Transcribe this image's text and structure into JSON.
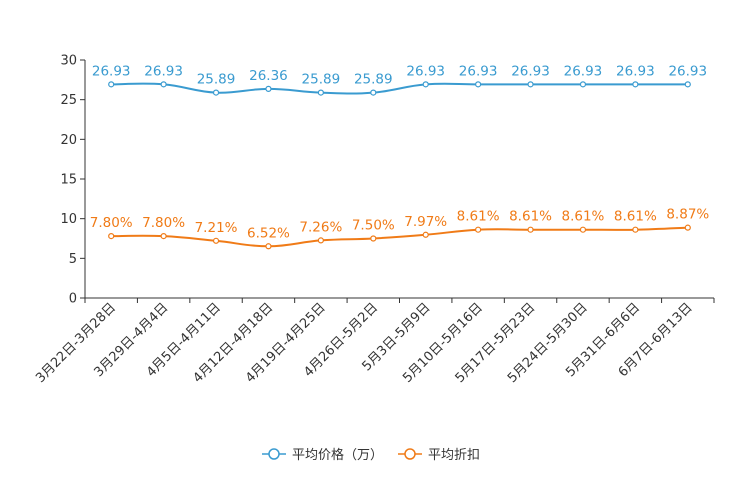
{
  "chart_data": {
    "type": "line",
    "title": "",
    "xlabel": "",
    "ylabel": "",
    "ylim": [
      0,
      30
    ],
    "yticks": [
      0,
      5,
      10,
      15,
      20,
      25,
      30
    ],
    "grid": false,
    "legend_position": "bottom-center",
    "categories": [
      "3月22日-3月28日",
      "3月29日-4月4日",
      "4月5日-4月11日",
      "4月12日-4月18日",
      "4月19日-4月25日",
      "4月26日-5月2日",
      "5月3日-5月9日",
      "5月10日-5月16日",
      "5月17日-5月23日",
      "5月24日-5月30日",
      "5月31日-6月6日",
      "6月7日-6月13日"
    ],
    "series": [
      {
        "name": "平均价格（万）",
        "color": "#3a9bd0",
        "values": [
          26.93,
          26.93,
          25.89,
          26.36,
          25.89,
          25.89,
          26.93,
          26.93,
          26.93,
          26.93,
          26.93,
          26.93
        ],
        "labels": [
          "26.93",
          "26.93",
          "25.89",
          "26.36",
          "25.89",
          "25.89",
          "26.93",
          "26.93",
          "26.93",
          "26.93",
          "26.93",
          "26.93"
        ]
      },
      {
        "name": "平均折扣",
        "color": "#f07b17",
        "values": [
          7.8,
          7.8,
          7.21,
          6.52,
          7.26,
          7.5,
          7.97,
          8.61,
          8.61,
          8.61,
          8.61,
          8.87
        ],
        "labels": [
          "7.80%",
          "7.80%",
          "7.21%",
          "6.52%",
          "7.26%",
          "7.50%",
          "7.97%",
          "8.61%",
          "8.61%",
          "8.61%",
          "8.61%",
          "8.87%"
        ]
      }
    ]
  },
  "legend": {
    "items": [
      {
        "label": "平均价格（万）",
        "color": "#3a9bd0"
      },
      {
        "label": "平均折扣",
        "color": "#f07b17"
      }
    ]
  }
}
